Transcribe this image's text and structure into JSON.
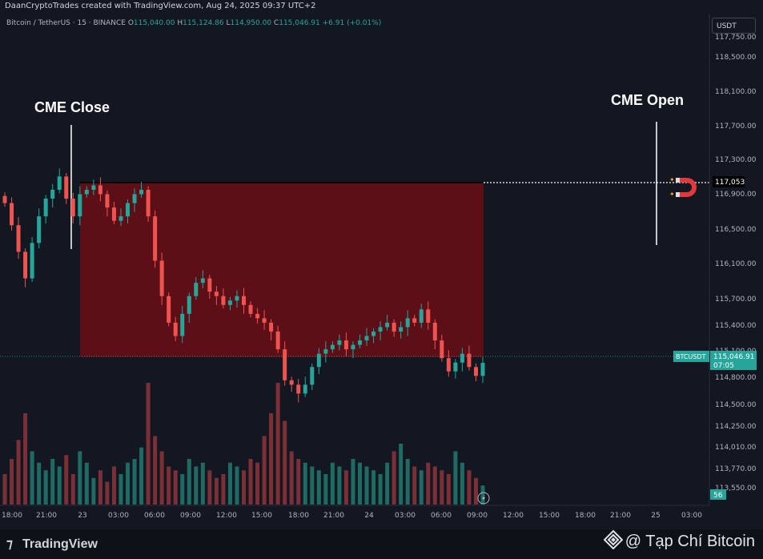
{
  "header": {
    "attribution": "DaanCryptoTrades created with TradingView.com, Aug 24, 2025 09:37 UTC+2"
  },
  "legend": {
    "symbol": "Bitcoin / TetherUS · 15 · BINANCE",
    "open_label": "O",
    "open": "115,040.00",
    "high_label": "H",
    "high": "115,124.86",
    "low_label": "L",
    "low": "114,950.00",
    "close_label": "C",
    "close": "115,046.91",
    "change": "+6.91 (+0.01%)"
  },
  "currency_button": "USDT",
  "annotations": {
    "cme_close": "CME Close",
    "cme_open": "CME Open"
  },
  "gap_level_label": "117,053",
  "price_badge": {
    "symbol": "BTCUSDT",
    "price": "115,046.91",
    "countdown": "07:05"
  },
  "volume_badge": "56",
  "footer": {
    "brand": "TradingView",
    "credit": "@ Tạp Chí Bitcoin"
  },
  "colors": {
    "up": "#26a69a",
    "down": "#ef5350",
    "gap_fill": "#5c0f17",
    "background": "#131722"
  },
  "icons": {
    "magnet": "magnet-icon",
    "replay": "lightning-icon",
    "exchange": "binance-diamond-icon"
  },
  "chart_data": {
    "type": "candlestick",
    "interval": "15",
    "y_axis": {
      "ticks": [
        "118,500.00",
        "118,100.00",
        "117,700.00",
        "117,300.00",
        "116,900.00",
        "116,500.00",
        "116,100.00",
        "115,700.00",
        "115,400.00",
        "115,100.00",
        "114,800.00",
        "114,500.00",
        "114,250.00",
        "114,010.00",
        "113,770.00",
        "113,550.00"
      ],
      "partial_top_tick": "117,750.00"
    },
    "x_axis": {
      "ticks": [
        "18:00",
        "21:00",
        "23",
        "03:00",
        "06:00",
        "09:00",
        "12:00",
        "15:00",
        "18:00",
        "21:00",
        "24",
        "03:00",
        "06:00",
        "09:00",
        "12:00",
        "15:00",
        "18:00",
        "21:00",
        "25",
        "03:00"
      ]
    },
    "gap": {
      "level": 117053,
      "from": "CME Close",
      "to": "last candle"
    },
    "close_path": [
      116850,
      116600,
      116300,
      116000,
      116400,
      116700,
      116900,
      117000,
      117150,
      116900,
      116700,
      116950,
      117000,
      117050,
      116950,
      116800,
      116650,
      116700,
      116850,
      116950,
      117000,
      116700,
      116200,
      115800,
      115500,
      115350,
      115600,
      115800,
      115950,
      116000,
      115850,
      115800,
      115700,
      115750,
      115800,
      115700,
      115600,
      115550,
      115500,
      115400,
      115200,
      114850,
      114800,
      114700,
      114800,
      115000,
      115150,
      115200,
      115250,
      115300,
      115200,
      115250,
      115300,
      115350,
      115400,
      115450,
      115500,
      115400,
      115450,
      115550,
      115500,
      115650,
      115500,
      115300,
      115100,
      114950,
      115050,
      115150,
      115000,
      114900,
      115046.91
    ],
    "volume": [
      40,
      60,
      85,
      120,
      70,
      55,
      45,
      60,
      50,
      65,
      40,
      70,
      55,
      35,
      45,
      30,
      50,
      40,
      55,
      60,
      75,
      160,
      90,
      70,
      50,
      45,
      40,
      60,
      50,
      55,
      45,
      35,
      40,
      55,
      50,
      45,
      60,
      55,
      90,
      120,
      160,
      110,
      70,
      60,
      55,
      50,
      45,
      40,
      55,
      50,
      45,
      60,
      55,
      50,
      45,
      40,
      55,
      70,
      80,
      60,
      50,
      45,
      55,
      50,
      45,
      40,
      70,
      55,
      45,
      35,
      25
    ]
  }
}
